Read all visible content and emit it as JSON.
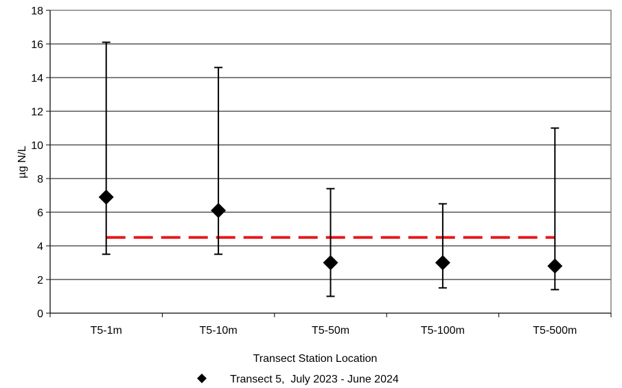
{
  "chart_data": {
    "type": "scatter",
    "xlabel": "Transect Station Location",
    "ylabel": "µg N/L",
    "ylim": [
      0,
      18
    ],
    "yticks": [
      0,
      2,
      4,
      6,
      8,
      10,
      12,
      14,
      16,
      18
    ],
    "grid": true,
    "legend_position": "bottom",
    "categories": [
      "T5-1m",
      "T5-10m",
      "T5-50m",
      "T5-100m",
      "T5-500m"
    ],
    "series": [
      {
        "name": "Transect 5,  July 2023 - June 2024",
        "values": [
          6.9,
          6.1,
          3.0,
          3.0,
          2.8
        ],
        "low": [
          3.5,
          3.5,
          1.0,
          1.5,
          1.4
        ],
        "high": [
          16.1,
          14.6,
          7.4,
          6.5,
          11.0
        ],
        "color": "#000000"
      }
    ],
    "reference_line": {
      "value": 4.5,
      "color": "#e8181b",
      "style": "dashed"
    }
  }
}
